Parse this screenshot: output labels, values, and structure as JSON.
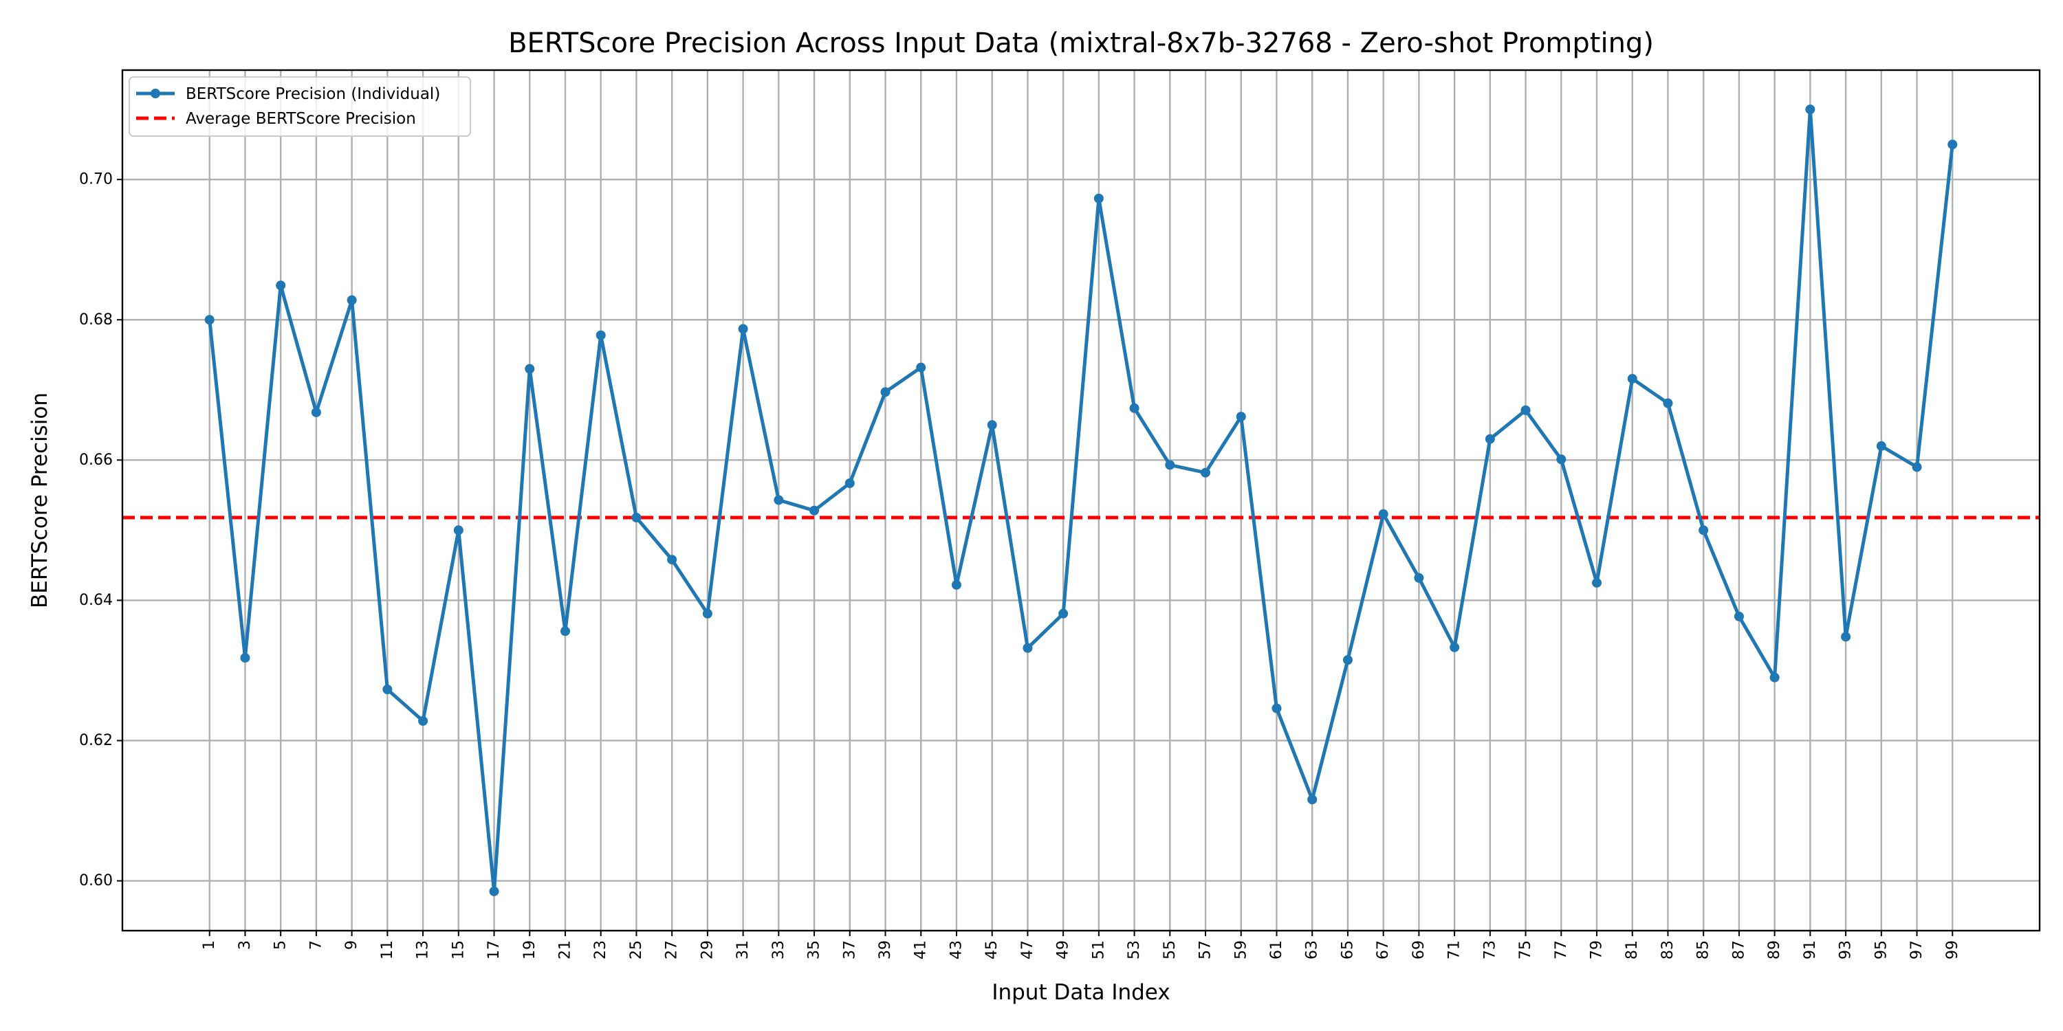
{
  "chart_data": {
    "type": "line",
    "title": "BERTScore Precision Across Input Data (mixtral-8x7b-32768 - Zero-shot Prompting)",
    "xlabel": "Input Data Index",
    "ylabel": "BERTScore Precision",
    "x": [
      1,
      3,
      5,
      7,
      9,
      11,
      13,
      15,
      17,
      19,
      21,
      23,
      25,
      27,
      29,
      31,
      33,
      35,
      37,
      39,
      41,
      43,
      45,
      47,
      49,
      51,
      53,
      55,
      57,
      59,
      61,
      63,
      65,
      67,
      69,
      71,
      73,
      75,
      77,
      79,
      81,
      83,
      85,
      87,
      89,
      91,
      93,
      95,
      97,
      99
    ],
    "series": [
      {
        "name": "BERTScore Precision (Individual)",
        "color": "#1f77b4",
        "marker": "circle",
        "values": [
          0.68,
          0.6318,
          0.6849,
          0.6668,
          0.6828,
          0.6273,
          0.6228,
          0.65,
          0.5985,
          0.673,
          0.6356,
          0.6778,
          0.6518,
          0.6458,
          0.6381,
          0.6787,
          0.6543,
          0.6528,
          0.6567,
          0.6697,
          0.6732,
          0.6422,
          0.665,
          0.6332,
          0.6381,
          0.6973,
          0.6674,
          0.6593,
          0.6582,
          0.6662,
          0.6246,
          0.6116,
          0.6315,
          0.6523,
          0.6432,
          0.6333,
          0.663,
          0.6671,
          0.6601,
          0.6425,
          0.6716,
          0.6681,
          0.65,
          0.6377,
          0.629,
          0.71,
          0.6348,
          0.662,
          0.659,
          0.705
        ]
      }
    ],
    "average": {
      "name": "Average BERTScore Precision",
      "value": 0.6518,
      "color": "#ff0000",
      "style": "dashed"
    },
    "ylim": [
      0.5929,
      0.7156
    ],
    "xlim": [
      -3.9,
      103.9
    ],
    "yticks": [
      0.6,
      0.62,
      0.64,
      0.66,
      0.68,
      0.7
    ],
    "ytick_labels": [
      "0.60",
      "0.62",
      "0.64",
      "0.66",
      "0.68",
      "0.70"
    ],
    "xtick_labels": [
      "1",
      "3",
      "5",
      "7",
      "9",
      "11",
      "13",
      "15",
      "17",
      "19",
      "21",
      "23",
      "25",
      "27",
      "29",
      "31",
      "33",
      "35",
      "37",
      "39",
      "41",
      "43",
      "45",
      "47",
      "49",
      "51",
      "53",
      "55",
      "57",
      "59",
      "61",
      "63",
      "65",
      "67",
      "69",
      "71",
      "73",
      "75",
      "77",
      "79",
      "81",
      "83",
      "85",
      "87",
      "89",
      "91",
      "93",
      "95",
      "97",
      "99"
    ],
    "grid": true,
    "legend_position": "top-left"
  }
}
